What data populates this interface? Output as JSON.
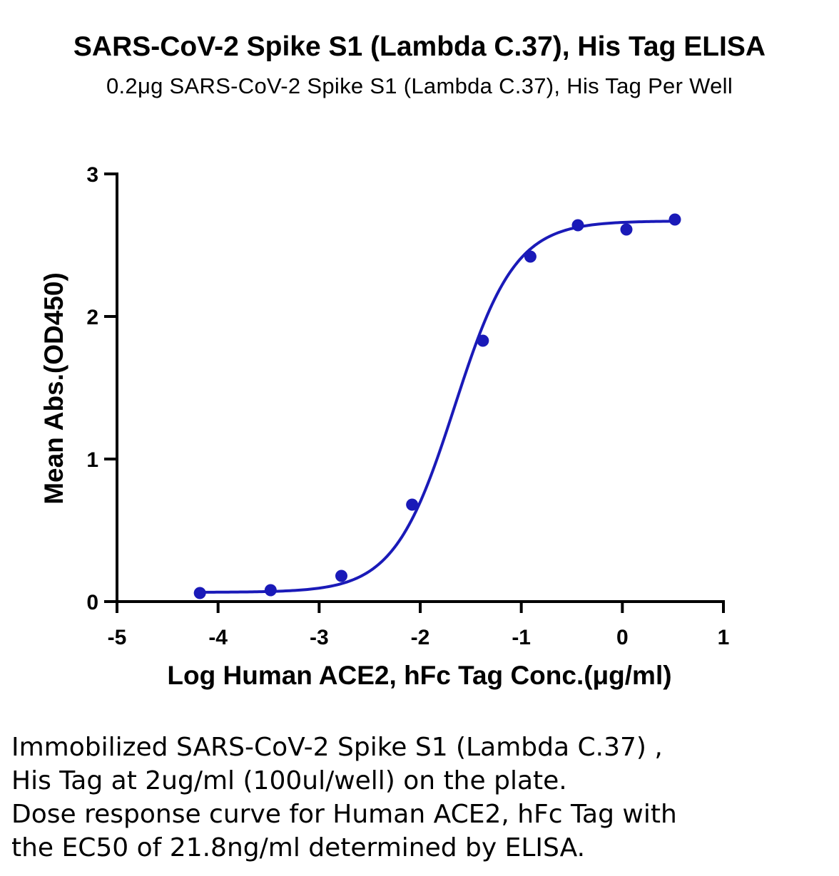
{
  "chart_data": {
    "type": "scatter",
    "title": "SARS-CoV-2 Spike S1 (Lambda C.37), His Tag ELISA",
    "subtitle": "0.2μg SARS-CoV-2 Spike S1 (Lambda C.37), His Tag Per Well",
    "xlabel": "Log Human ACE2, hFc Tag Conc.(μg/ml)",
    "ylabel": "Mean Abs.(OD450)",
    "xlim": [
      -5,
      1
    ],
    "ylim": [
      0,
      3
    ],
    "x_ticks": [
      "-5",
      "-4",
      "-3",
      "-2",
      "-1",
      "0",
      "1"
    ],
    "y_ticks": [
      "0",
      "1",
      "2",
      "3"
    ],
    "grid": false,
    "color": "#1a1ab8",
    "series": [
      {
        "x": [
          -4.18,
          -3.48,
          -2.78,
          -2.08,
          -1.38,
          -0.91,
          -0.44,
          0.04,
          0.52
        ],
        "y": [
          0.06,
          0.08,
          0.18,
          0.68,
          1.83,
          2.42,
          2.64,
          2.61,
          2.68
        ]
      }
    ],
    "fit": {
      "model": "4PL",
      "bottom": 0.065,
      "top": 2.67,
      "logEC50": -1.66,
      "hill": 1.45
    }
  },
  "caption": {
    "lines": [
      "Immobilized SARS-CoV-2 Spike S1 (Lambda C.37) ,",
      "His Tag at 2ug/ml (100ul/well) on the plate.",
      "Dose response curve for Human ACE2, hFc Tag with",
      "the EC50 of 21.8ng/ml determined by ELISA."
    ]
  }
}
